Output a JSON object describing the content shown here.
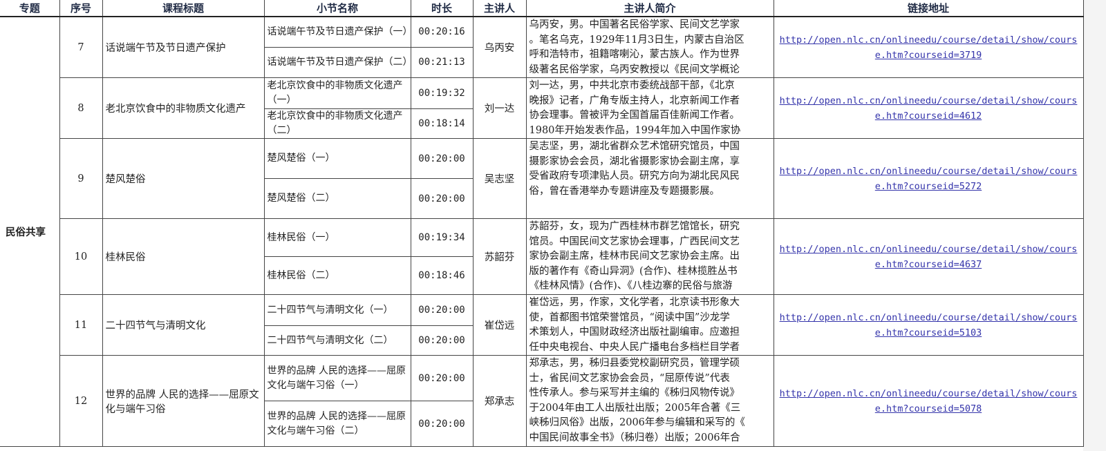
{
  "headers": [
    "专题",
    "序号",
    "课程标题",
    "小节名称",
    "时长",
    "主讲人",
    "主讲人简介",
    "链接地址"
  ],
  "topic": "民俗共享",
  "courses": [
    {
      "no": "7",
      "title": "话说端午节及节日遗产保护",
      "lecturer": "乌丙安",
      "sections": [
        {
          "name": "话说端午节及节日遗产保护（一）",
          "duration": "00:20:16"
        },
        {
          "name": "话说端午节及节日遗产保护（二）",
          "duration": "00:21:13"
        }
      ],
      "intro": [
        "乌丙安，男。中国著名民俗学家、民间文艺学家",
        "。笔名乌克，1929年11月3日生，内蒙古自治区",
        "呼和浩特市，祖籍喀喇沁，蒙古族人。作为世界",
        "级著名民俗学家，乌丙安教授以《民间文学概论"
      ],
      "link": "http://open.nlc.cn/onlineedu/course/detail/show/course.htm?courseid=3719"
    },
    {
      "no": "8",
      "title": "老北京饮食中的非物质文化遗产",
      "lecturer": "刘一达",
      "sections": [
        {
          "name": "老北京饮食中的非物质文化遗产（一）",
          "duration": "00:19:32"
        },
        {
          "name": "老北京饮食中的非物质文化遗产（二）",
          "duration": "00:18:14"
        }
      ],
      "intro": [
        "刘一达，男，中共北京市委统战部干部，《北京",
        "晚报》记者，广角专版主持人，北京新闻工作者",
        "协会理事。曾被评为全国首届百佳新闻工作者。",
        "1980年开始发表作品，1994年加入中国作家协"
      ],
      "link": "http://open.nlc.cn/onlineedu/course/detail/show/course.htm?courseid=4612"
    },
    {
      "no": "9",
      "title": "楚风楚俗",
      "lecturer": "吴志坚",
      "sections": [
        {
          "name": "楚风楚俗（一）",
          "duration": "00:20:00"
        },
        {
          "name": "楚风楚俗（二）",
          "duration": "00:20:00"
        }
      ],
      "intro": [
        "吴志坚，男，湖北省群众艺术馆研究馆员，中国",
        "摄影家协会会员，湖北省摄影家协会副主席，享",
        "受省政府专项津贴人员。研究方向为湖北民风民",
        "俗，曾在香港举办专题讲座及专题摄影展。"
      ],
      "link": "http://open.nlc.cn/onlineedu/course/detail/show/course.htm?courseid=5272"
    },
    {
      "no": "10",
      "title": "桂林民俗",
      "lecturer": "苏韶芬",
      "sections": [
        {
          "name": "桂林民俗（一）",
          "duration": "00:19:34"
        },
        {
          "name": "桂林民俗（二）",
          "duration": "00:18:46"
        }
      ],
      "intro": [
        "苏韶芬，女，现为广西桂林市群艺馆馆长，研究",
        "馆员。中国民间文艺家协会理事，广西民间文艺",
        "家协会副主席，桂林市民间文艺家协会主席。出",
        "版的著作有《奇山异洞》(合作)、桂林揽胜丛书",
        "《桂林风情》(合作)、《八桂边寨的民俗与旅游"
      ],
      "link": "http://open.nlc.cn/onlineedu/course/detail/show/course.htm?courseid=4637"
    },
    {
      "no": "11",
      "title": "二十四节气与清明文化",
      "lecturer": "崔岱远",
      "sections": [
        {
          "name": "二十四节气与清明文化（一）",
          "duration": "00:20:00"
        },
        {
          "name": "二十四节气与清明文化（二）",
          "duration": "00:20:00"
        }
      ],
      "intro": [
        "崔岱远，男，作家，文化学者，北京读书形象大",
        "使，首都图书馆荣誉馆员，“阅读中国”沙龙学",
        "术策划人，中国财政经济出版社副编审。应邀担",
        "任中央电视台、中央人民广播电台多档栏目学者"
      ],
      "link": "http://open.nlc.cn/onlineedu/course/detail/show/course.htm?courseid=5103"
    },
    {
      "no": "12",
      "title": "世界的品牌 人民的选择——屈原文化与端午习俗",
      "lecturer": "郑承志",
      "sections": [
        {
          "name": "世界的品牌 人民的选择——屈原文化与端午习俗（一）",
          "duration": "00:20:00"
        },
        {
          "name": "世界的品牌 人民的选择——屈原文化与端午习俗（二）",
          "duration": "00:20:00"
        }
      ],
      "intro": [
        "郑承志，男，秭归县委党校副研究员，管理学硕",
        "士，省民间文艺家协会会员，“屈原传说”代表",
        "性传承人。参与采写并主编的《秭归风物传说》",
        "于2004年由工人出版社出版；2005年合著《三",
        "峡秭归风俗》出版，2006年参与编辑和采写的《",
        "中国民间故事全书》（秭归卷）出版；2006年合"
      ],
      "link": "http://open.nlc.cn/onlineedu/course/detail/show/course.htm?courseid=5078"
    }
  ],
  "colors": {
    "link": "#3333aa",
    "header_text": "#1f2a44"
  }
}
